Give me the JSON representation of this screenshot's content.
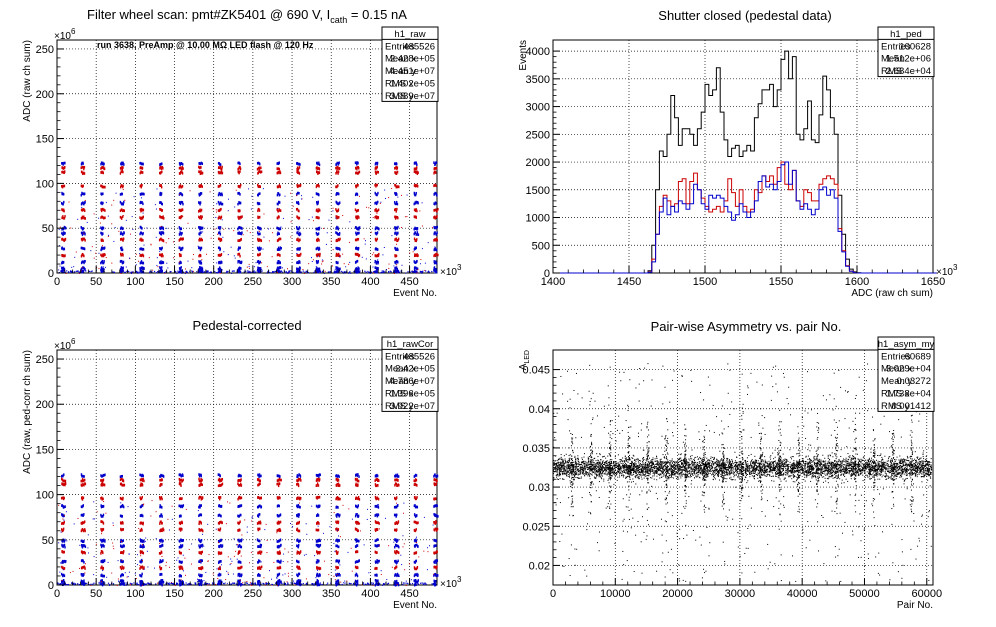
{
  "chart_data": [
    {
      "id": "raw",
      "type": "scatter",
      "title": "Filter wheel scan: pmt#ZK5401 @   690 V, I",
      "title_sub": "cath",
      "title_tail": " = 0.15 nA",
      "annotation": "run 3638, PreAmp @ 10.00 MΩ LED flash @  120 Hz",
      "xlabel": "Event No.",
      "ylabel": "ADC (raw ch sum)",
      "x_exp": "×10",
      "x_exp_pow": "3",
      "y_exp": "×10",
      "y_exp_pow": "6",
      "xlim": [
        0,
        485
      ],
      "ylim": [
        0,
        260
      ],
      "xticks": [
        0,
        50,
        100,
        150,
        200,
        250,
        300,
        350,
        400,
        450
      ],
      "yticks": [
        0,
        50,
        100,
        150,
        200,
        250
      ],
      "grid": true,
      "stats": {
        "name": "h1_raw",
        "rows": [
          [
            "Entries",
            "485526"
          ],
          [
            "Mean x",
            "2.428e+05"
          ],
          [
            "Mean y",
            "4.451e+07"
          ],
          [
            "RMS x",
            "1.402e+05"
          ],
          [
            "RMS y",
            "3.989e+07"
          ]
        ]
      },
      "period": 25,
      "levels": [
        {
          "v": 122,
          "color": "#0000cc"
        },
        {
          "v": 117,
          "color": "#cc0000"
        },
        {
          "v": 112,
          "color": "#cc0000"
        },
        {
          "v": 97,
          "color": "#cc0000"
        },
        {
          "v": 88,
          "color": "#0000cc"
        },
        {
          "v": 78,
          "color": "#0000cc"
        },
        {
          "v": 70,
          "color": "#cc0000"
        },
        {
          "v": 62,
          "color": "#cc0000"
        },
        {
          "v": 50,
          "color": "#0000cc"
        },
        {
          "v": 44,
          "color": "#0000cc"
        },
        {
          "v": 37,
          "color": "#cc0000"
        },
        {
          "v": 27,
          "color": "#0000cc"
        },
        {
          "v": 20,
          "color": "#cc0000"
        },
        {
          "v": 12,
          "color": "#0000cc"
        },
        {
          "v": 5,
          "color": "#0000cc"
        },
        {
          "v": 2,
          "color": "#0000cc"
        }
      ]
    },
    {
      "id": "ped",
      "type": "line",
      "title": "Shutter closed (pedestal data)",
      "xlabel": "ADC (raw ch sum)",
      "ylabel": "Events",
      "x_exp": "×10",
      "x_exp_pow": "3",
      "xlim": [
        1400,
        1650
      ],
      "ylim": [
        0,
        4200
      ],
      "xticks": [
        1400,
        1450,
        1500,
        1550,
        1600,
        1650
      ],
      "yticks": [
        0,
        500,
        1000,
        1500,
        2000,
        2500,
        3000,
        3500,
        4000
      ],
      "grid": true,
      "stats": {
        "name": "h1_ped",
        "rows": [
          [
            "Entries",
            "100628"
          ],
          [
            "Mean",
            "1.512e+06"
          ],
          [
            "RMS",
            "2.684e+04"
          ]
        ]
      },
      "bin_start": 1400,
      "bin_width": 2.5,
      "series": [
        {
          "color": "#000000",
          "values": [
            0,
            0,
            0,
            0,
            0,
            0,
            0,
            0,
            0,
            0,
            0,
            0,
            0,
            0,
            0,
            0,
            0,
            0,
            0,
            0,
            0,
            0,
            0,
            0,
            0,
            40,
            500,
            1500,
            2200,
            2100,
            2500,
            3200,
            2800,
            2300,
            2600,
            2600,
            2500,
            2300,
            2600,
            2900,
            3400,
            3200,
            3300,
            3700,
            2900,
            2400,
            2100,
            2250,
            2300,
            2100,
            2200,
            2300,
            2200,
            2800,
            3050,
            3300,
            3300,
            3400,
            3000,
            3300,
            3850,
            4000,
            3500,
            3900,
            2500,
            2400,
            2600,
            3100,
            2400,
            2350,
            2850,
            3550,
            3300,
            2800,
            2500,
            1400,
            700,
            250,
            70,
            20,
            5,
            0,
            0,
            0,
            0,
            0,
            0,
            0,
            0,
            0,
            0,
            0,
            0,
            0,
            0,
            0,
            0,
            0,
            0,
            0,
            0
          ]
        },
        {
          "color": "#cc0000",
          "values": [
            0,
            0,
            0,
            0,
            0,
            0,
            0,
            0,
            0,
            0,
            0,
            0,
            0,
            0,
            0,
            0,
            0,
            0,
            0,
            0,
            0,
            0,
            0,
            0,
            0,
            20,
            250,
            700,
            1200,
            1400,
            1300,
            1200,
            1250,
            1650,
            1700,
            1250,
            1650,
            1800,
            1500,
            1350,
            1200,
            1100,
            1150,
            1200,
            1100,
            1300,
            1700,
            1450,
            1200,
            1500,
            1200,
            1100,
            1150,
            1500,
            1450,
            1750,
            1650,
            1750,
            1600,
            1900,
            2000,
            1600,
            1500,
            1850,
            1300,
            1200,
            1500,
            1450,
            1300,
            1300,
            1600,
            1700,
            1750,
            1700,
            1600,
            800,
            400,
            130,
            35,
            10,
            0,
            0,
            0,
            0,
            0,
            0,
            0,
            0,
            0,
            0,
            0,
            0,
            0,
            0,
            0,
            0,
            0,
            0,
            0,
            0,
            0
          ]
        },
        {
          "color": "#0000cc",
          "values": [
            0,
            0,
            0,
            0,
            0,
            0,
            0,
            0,
            0,
            0,
            0,
            0,
            0,
            0,
            0,
            0,
            0,
            0,
            0,
            0,
            0,
            0,
            0,
            0,
            0,
            15,
            200,
            700,
            1100,
            1350,
            1050,
            1200,
            1100,
            1300,
            1250,
            1150,
            1250,
            1600,
            1500,
            1250,
            1150,
            1400,
            1350,
            1400,
            1350,
            1200,
            1100,
            950,
            1050,
            1250,
            1100,
            1000,
            1100,
            1300,
            1650,
            1750,
            1550,
            1600,
            1500,
            1650,
            1950,
            2000,
            1600,
            1850,
            1300,
            1150,
            1250,
            1150,
            1050,
            1150,
            1500,
            1550,
            1400,
            1500,
            1350,
            750,
            380,
            120,
            30,
            8,
            0,
            0,
            0,
            0,
            0,
            0,
            0,
            0,
            0,
            0,
            0,
            0,
            0,
            0,
            0,
            0,
            0,
            0,
            0,
            0,
            0
          ]
        }
      ]
    },
    {
      "id": "rawcor",
      "type": "scatter",
      "title": "Pedestal-corrected",
      "xlabel": "Event No.",
      "ylabel": "ADC (raw, ped-corr ch sum)",
      "x_exp": "×10",
      "x_exp_pow": "3",
      "y_exp": "×10",
      "y_exp_pow": "6",
      "xlim": [
        0,
        485
      ],
      "ylim": [
        0,
        260
      ],
      "xticks": [
        0,
        50,
        100,
        150,
        200,
        250,
        300,
        350,
        400,
        450
      ],
      "yticks": [
        0,
        50,
        100,
        150,
        200,
        250
      ],
      "grid": true,
      "stats": {
        "name": "h1_rawCor",
        "rows": [
          [
            "Entries",
            "485526"
          ],
          [
            "Mean x",
            "2.42e+05"
          ],
          [
            "Mean y",
            "4.786e+07"
          ],
          [
            "RMS x",
            "1.396e+05"
          ],
          [
            "RMS y",
            "3.922e+07"
          ]
        ]
      },
      "period": 25,
      "levels": [
        {
          "v": 121,
          "color": "#0000cc"
        },
        {
          "v": 116,
          "color": "#cc0000"
        },
        {
          "v": 111,
          "color": "#cc0000"
        },
        {
          "v": 96,
          "color": "#cc0000"
        },
        {
          "v": 87,
          "color": "#0000cc"
        },
        {
          "v": 77,
          "color": "#0000cc"
        },
        {
          "v": 69,
          "color": "#cc0000"
        },
        {
          "v": 61,
          "color": "#cc0000"
        },
        {
          "v": 49,
          "color": "#0000cc"
        },
        {
          "v": 43,
          "color": "#0000cc"
        },
        {
          "v": 36,
          "color": "#cc0000"
        },
        {
          "v": 26,
          "color": "#0000cc"
        },
        {
          "v": 19,
          "color": "#cc0000"
        },
        {
          "v": 11,
          "color": "#0000cc"
        },
        {
          "v": 4,
          "color": "#0000cc"
        },
        {
          "v": 1,
          "color": "#0000cc"
        }
      ]
    },
    {
      "id": "asym",
      "type": "scatter",
      "title": "Pair-wise Asymmetry vs. pair No.",
      "xlabel": "Pair No.",
      "ylabel": "A",
      "ylabel_sub": "LED",
      "xlim": [
        0,
        61000
      ],
      "ylim": [
        0.0175,
        0.0475
      ],
      "xticks": [
        0,
        10000,
        20000,
        30000,
        40000,
        50000,
        60000
      ],
      "yticks": [
        0.02,
        0.025,
        0.03,
        0.035,
        0.04,
        0.045
      ],
      "grid": true,
      "stats": {
        "name": "h1_asym_my",
        "rows": [
          [
            "Entries",
            "60689"
          ],
          [
            "Mean x",
            "3.029e+04"
          ],
          [
            "Mean y",
            "0.03272"
          ],
          [
            "RMS x",
            "1.738e+04"
          ],
          [
            "RMS y",
            "0.001412"
          ]
        ]
      },
      "band_center": 0.0325,
      "band_halfwidth": 0.0009,
      "spike_period": 3030,
      "spike_offset": 3000
    }
  ]
}
